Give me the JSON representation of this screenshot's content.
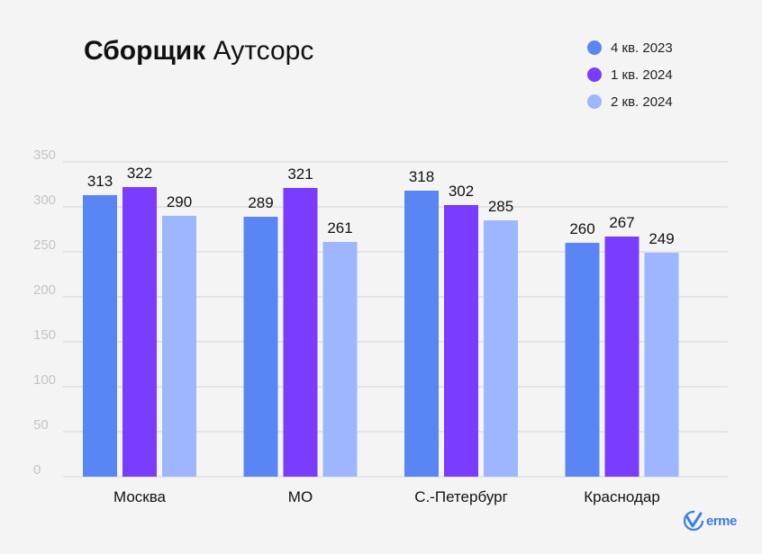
{
  "title": {
    "bold": "Сборщик",
    "rest": "Аутсорс"
  },
  "colors": {
    "q4_2023": "#5a86f5",
    "q1_2024": "#7a3cff",
    "q2_2024": "#9db6ff",
    "grid": "#d4d4d4",
    "tick": "#c4c4c4"
  },
  "logo": {
    "text": "erme",
    "icon": "v-check-icon"
  },
  "chart_data": {
    "type": "bar",
    "categories": [
      "Москва",
      "МО",
      "С.-Петербург",
      "Краснодар"
    ],
    "series": [
      {
        "name": "4 кв. 2023",
        "values": [
          313,
          289,
          318,
          260
        ]
      },
      {
        "name": "1 кв. 2024",
        "values": [
          322,
          321,
          302,
          267
        ]
      },
      {
        "name": "2 кв. 2024",
        "values": [
          290,
          261,
          285,
          249
        ]
      }
    ],
    "yticks": [
      "0",
      "50",
      "100",
      "150",
      "200",
      "250",
      "300",
      "350"
    ],
    "ylim": [
      0,
      350
    ],
    "grid": true,
    "legend": "top-right"
  }
}
